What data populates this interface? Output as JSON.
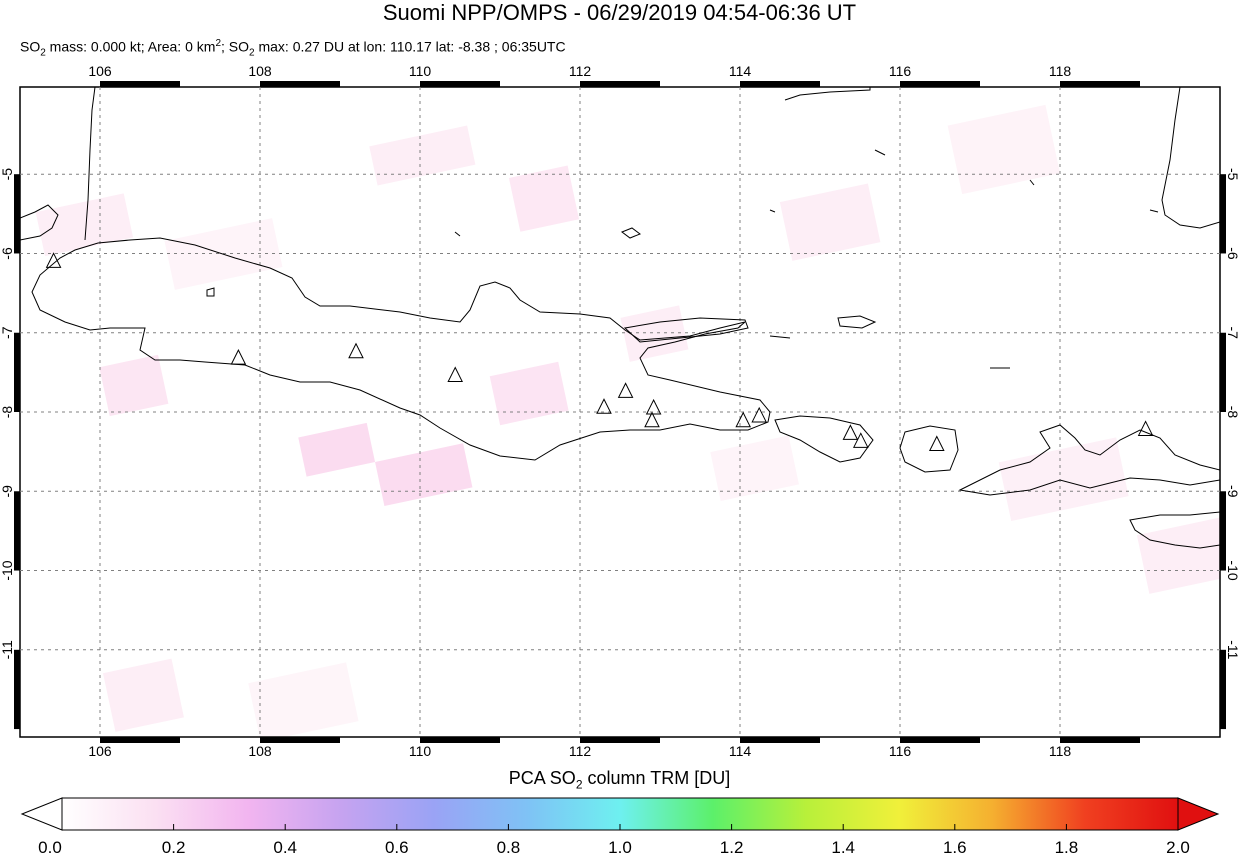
{
  "header": {
    "title": "Suomi NPP/OMPS - 06/29/2019 04:54-06:36 UT",
    "subtitle": {
      "part1": "SO",
      "part2": " mass: 0.000 kt; Area: 0 km",
      "part3": "; SO",
      "part4": " max: 0.27 DU at lon: 110.17 lat: -8.38 ; 06:35UTC",
      "sub": "2",
      "sup": "2"
    }
  },
  "map": {
    "lon_range": [
      105,
      120
    ],
    "lat_range": [
      -12.1,
      -3.9
    ],
    "lon_ticks": [
      "106",
      "108",
      "110",
      "112",
      "114",
      "116",
      "118"
    ],
    "lat_ticks": [
      "-5",
      "-6",
      "-7",
      "-8",
      "-9",
      "-10",
      "-11"
    ],
    "volcano_marker": "triangle-icon",
    "volcanoes": [
      {
        "lon": 105.42,
        "lat": -6.1
      },
      {
        "lon": 107.73,
        "lat": -7.32
      },
      {
        "lon": 109.2,
        "lat": -7.24
      },
      {
        "lon": 110.44,
        "lat": -7.54
      },
      {
        "lon": 112.3,
        "lat": -7.94
      },
      {
        "lon": 112.57,
        "lat": -7.74
      },
      {
        "lon": 112.92,
        "lat": -7.95
      },
      {
        "lon": 112.9,
        "lat": -8.11
      },
      {
        "lon": 114.04,
        "lat": -8.11
      },
      {
        "lon": 114.24,
        "lat": -8.05
      },
      {
        "lon": 115.38,
        "lat": -8.27
      },
      {
        "lon": 115.51,
        "lat": -8.37
      },
      {
        "lon": 116.46,
        "lat": -8.41
      },
      {
        "lon": 119.07,
        "lat": -8.22
      }
    ],
    "coast_color": "#000000",
    "grid_color": "#808080"
  },
  "colorbar": {
    "title_pre": "PCA SO",
    "title_sub": "2",
    "title_post": " column TRM [DU]",
    "tick_labels": [
      "0.0",
      "0.2",
      "0.4",
      "0.6",
      "0.8",
      "1.0",
      "1.2",
      "1.4",
      "1.6",
      "1.8",
      "2.0"
    ],
    "colors": [
      "#ffffff",
      "#fbe0f2",
      "#f2b5f0",
      "#c6a3f0",
      "#9aa3f5",
      "#7fc2f5",
      "#6ef0f0",
      "#5cf06a",
      "#b8f03a",
      "#f0f03a",
      "#f5b030",
      "#f04020",
      "#e01010"
    ],
    "range": [
      0.0,
      2.0
    ]
  }
}
